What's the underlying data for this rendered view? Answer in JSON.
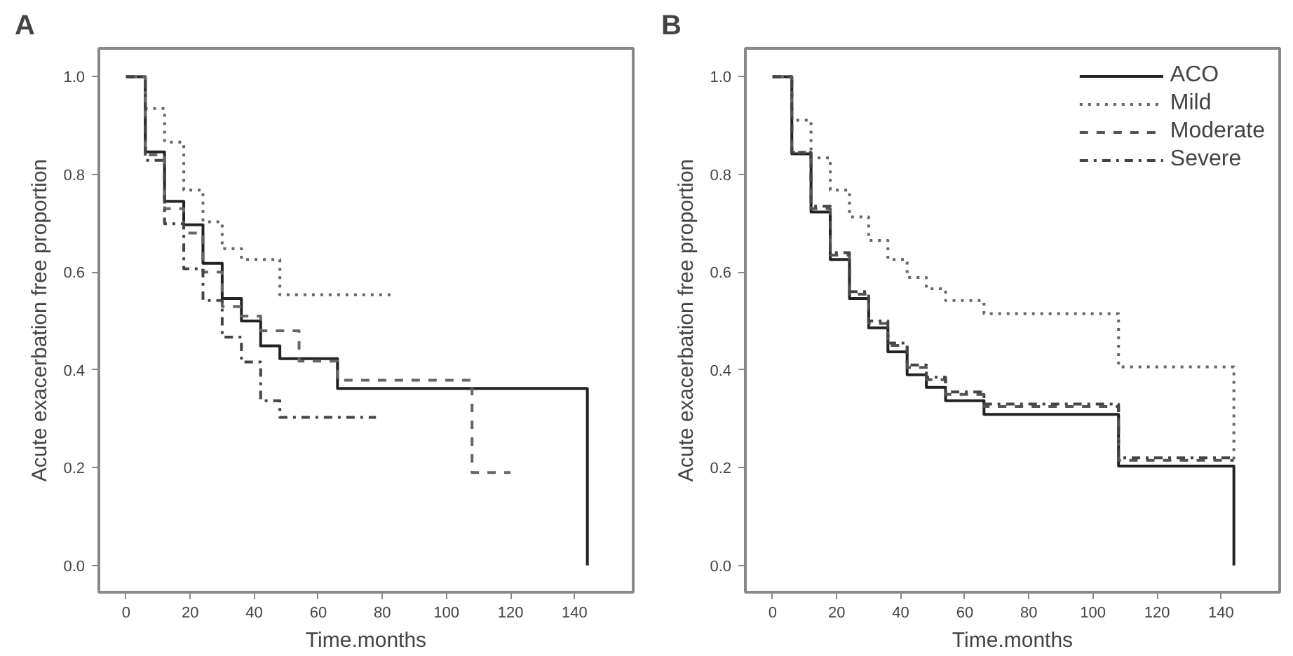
{
  "chart_data": [
    {
      "type": "step",
      "title": "A",
      "xlabel": "Time.months",
      "ylabel": "Acute exacerbation free proportion",
      "xlim": [
        -8.5,
        158.3
      ],
      "ylim": [
        -0.055,
        1.058
      ],
      "xticks": [
        0,
        20,
        40,
        60,
        80,
        100,
        120,
        140
      ],
      "yticks": [
        {
          "value": 0,
          "label": "0.0"
        },
        {
          "value": 0.2,
          "label": "0.2"
        },
        {
          "value": 0.4,
          "label": "0.4"
        },
        {
          "value": 0.6,
          "label": "0.6"
        },
        {
          "value": 0.8,
          "label": "0.8"
        },
        {
          "value": 1,
          "label": "1.0"
        }
      ],
      "grid": false,
      "legend": false,
      "series": [
        {
          "color": "#222222",
          "line_style": "solid",
          "x": [
            0,
            6,
            12,
            18,
            24,
            30,
            36,
            42,
            48,
            66,
            144
          ],
          "values": [
            1.0,
            0.846,
            0.745,
            0.697,
            0.618,
            0.546,
            0.5,
            0.449,
            0.423,
            0.362,
            0
          ]
        },
        {
          "color": "#666666",
          "line_style": "dotted",
          "x": [
            0,
            6,
            12,
            18,
            24,
            30,
            36,
            48,
            84
          ],
          "values": [
            1.0,
            0.935,
            0.866,
            0.768,
            0.703,
            0.648,
            0.626,
            0.554,
            0.554
          ]
        },
        {
          "color": "#666666",
          "line_style": "dashed",
          "x": [
            0,
            6,
            12,
            18,
            24,
            30,
            36,
            42,
            54,
            66,
            108,
            120
          ],
          "values": [
            1.0,
            0.84,
            0.73,
            0.68,
            0.6,
            0.53,
            0.51,
            0.48,
            0.418,
            0.379,
            0.19,
            0.19
          ]
        },
        {
          "color": "#444444",
          "line_style": "dashdot",
          "x": [
            0,
            6,
            12,
            18,
            24,
            30,
            36,
            42,
            48,
            78
          ],
          "values": [
            1.0,
            0.829,
            0.699,
            0.607,
            0.542,
            0.467,
            0.416,
            0.337,
            0.303,
            0.303
          ]
        }
      ]
    },
    {
      "type": "step",
      "title": "B",
      "xlabel": "Time.months",
      "ylabel": "Acute exacerbation free proportion",
      "xlim": [
        -8.5,
        158.3
      ],
      "ylim": [
        -0.055,
        1.058
      ],
      "xticks": [
        0,
        20,
        40,
        60,
        80,
        100,
        120,
        140
      ],
      "yticks": [
        {
          "value": 0,
          "label": "0.0"
        },
        {
          "value": 0.2,
          "label": "0.2"
        },
        {
          "value": 0.4,
          "label": "0.4"
        },
        {
          "value": 0.6,
          "label": "0.6"
        },
        {
          "value": 0.8,
          "label": "0.8"
        },
        {
          "value": 1,
          "label": "1.0"
        }
      ],
      "grid": false,
      "legend": "top right",
      "series": [
        {
          "name": "ACO",
          "color": "#222222",
          "line_style": "solid",
          "x": [
            0,
            6,
            12,
            18,
            24,
            30,
            36,
            42,
            48,
            54,
            66,
            108,
            144
          ],
          "values": [
            1.0,
            0.842,
            0.723,
            0.626,
            0.546,
            0.486,
            0.437,
            0.39,
            0.364,
            0.337,
            0.309,
            0.203,
            0
          ]
        },
        {
          "name": "Mild",
          "color": "#666666",
          "line_style": "dotted",
          "x": [
            0,
            6,
            12,
            18,
            24,
            30,
            36,
            42,
            48,
            54,
            66,
            108,
            144
          ],
          "values": [
            1.0,
            0.911,
            0.834,
            0.768,
            0.713,
            0.665,
            0.626,
            0.589,
            0.566,
            0.542,
            0.515,
            0.406,
            0.21
          ]
        },
        {
          "name": "Moderate",
          "color": "#555555",
          "line_style": "dashed",
          "x": [
            0,
            6,
            12,
            18,
            24,
            30,
            36,
            42,
            48,
            54,
            66,
            108,
            144
          ],
          "values": [
            1.0,
            0.845,
            0.73,
            0.635,
            0.555,
            0.495,
            0.45,
            0.405,
            0.38,
            0.35,
            0.325,
            0.215,
            0.215
          ]
        },
        {
          "name": "Severe",
          "color": "#444444",
          "line_style": "dashdot",
          "x": [
            0,
            6,
            12,
            18,
            24,
            30,
            36,
            42,
            48,
            54,
            66,
            108,
            144
          ],
          "values": [
            1.0,
            0.845,
            0.735,
            0.64,
            0.56,
            0.5,
            0.455,
            0.41,
            0.385,
            0.355,
            0.33,
            0.22,
            0.22
          ]
        }
      ]
    }
  ]
}
